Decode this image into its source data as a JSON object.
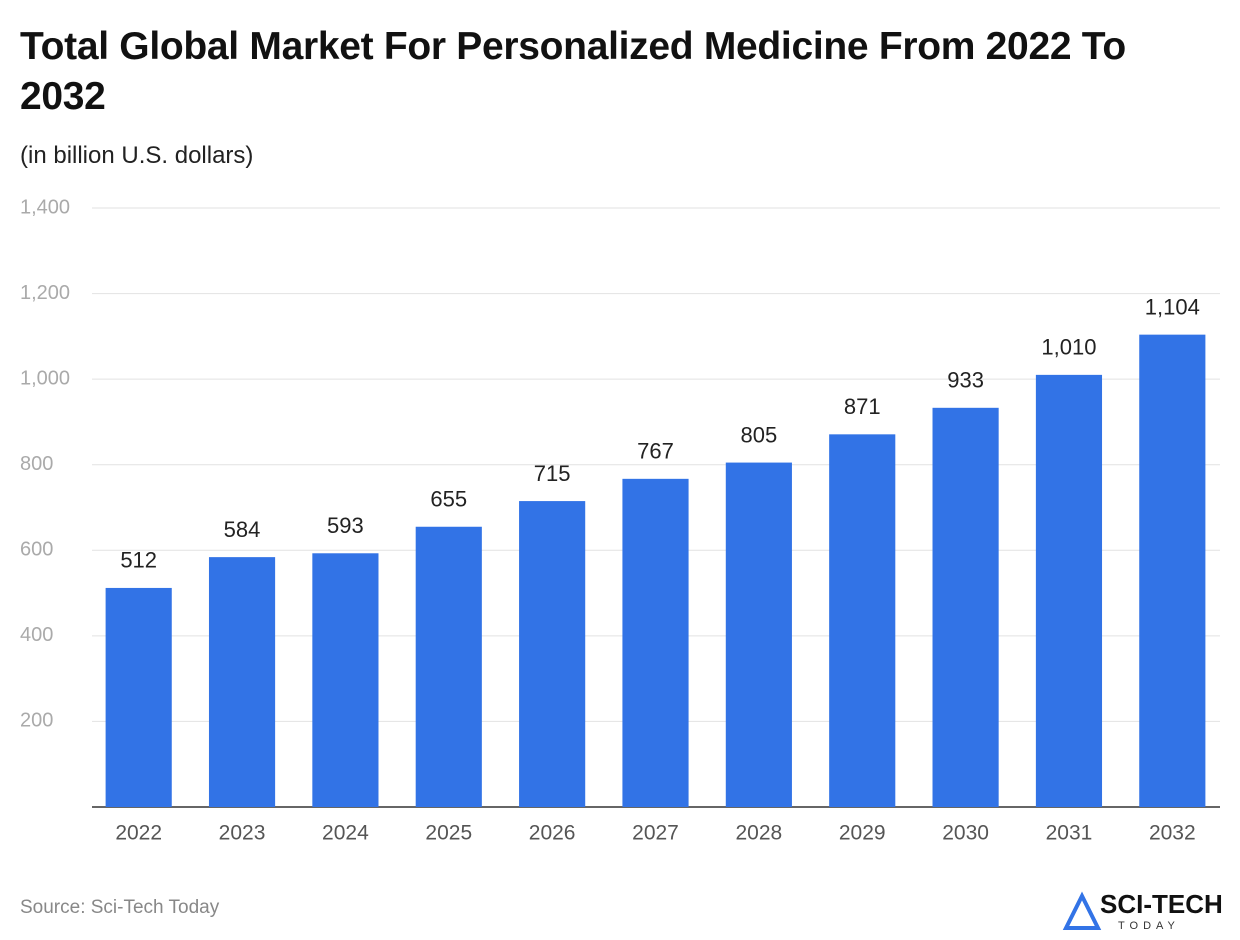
{
  "chart_data": {
    "type": "bar",
    "title": "Total Global Market For Personalized Medicine From 2022 To 2032",
    "subtitle": "(in billion U.S. dollars)",
    "categories": [
      "2022",
      "2023",
      "2024",
      "2025",
      "2026",
      "2027",
      "2028",
      "2029",
      "2030",
      "2031",
      "2032"
    ],
    "values": [
      512,
      584,
      593,
      655,
      715,
      767,
      805,
      871,
      933,
      1010,
      1104
    ],
    "value_labels": [
      "512",
      "584",
      "593",
      "655",
      "715",
      "767",
      "805",
      "871",
      "933",
      "1,010",
      "1,104"
    ],
    "color": "#3273e6",
    "ylim": [
      0,
      1400
    ],
    "yticks": [
      200,
      400,
      600,
      800,
      {
        "value": 1000,
        "label": "1,000"
      },
      {
        "value": 1200,
        "label": "1,200"
      },
      {
        "value": 1400,
        "label": "1,400"
      }
    ],
    "grid": true,
    "source": "Source: Sci-Tech Today"
  },
  "logo": {
    "name": "SCI-TECH",
    "tagline": "TODAY"
  }
}
